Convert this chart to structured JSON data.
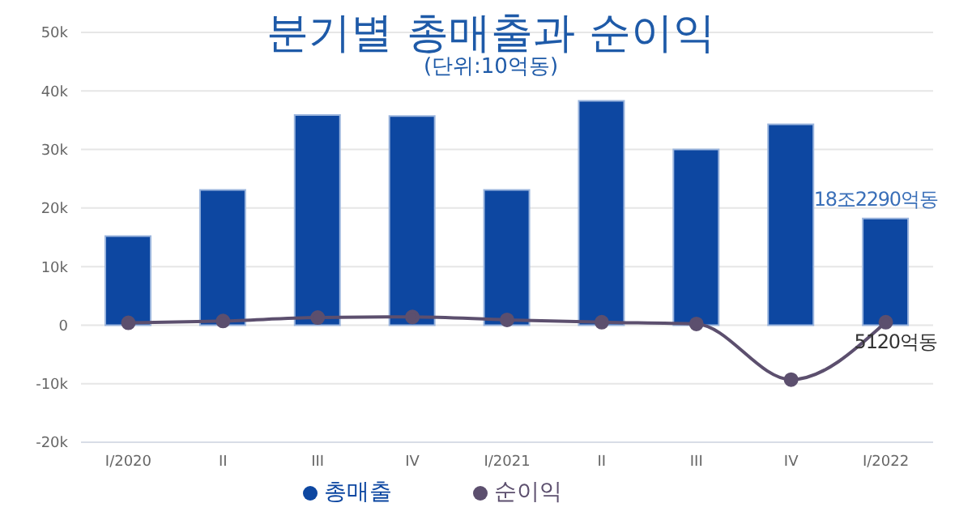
{
  "chart_data": {
    "type": "bar",
    "title": "분기별 총매출과 순이익",
    "subtitle": "(단위:10억동)",
    "categories": [
      "I/2020",
      "II",
      "III",
      "IV",
      "I/2021",
      "II",
      "III",
      "IV",
      "I/2022"
    ],
    "series": [
      {
        "name": "총매출",
        "color": "#0d47a1",
        "values": [
          15.2,
          23.1,
          35.9,
          35.7,
          23.1,
          38.3,
          30.0,
          34.3,
          18.2
        ]
      },
      {
        "name": "순이익",
        "type": "line",
        "color": "#5c4f6e",
        "values": [
          0.4,
          0.7,
          1.3,
          1.4,
          0.9,
          0.5,
          0.2,
          -9.3,
          0.5
        ]
      }
    ],
    "annotations": [
      "18조2290억동",
      "5120억동"
    ],
    "ylim": [
      -20,
      50
    ],
    "yticks": [
      {
        "value": -20,
        "label": "-20k"
      },
      {
        "value": -10,
        "label": "-10k"
      },
      0,
      {
        "value": 10,
        "label": "10k"
      },
      {
        "value": 20,
        "label": "20k"
      },
      {
        "value": 30,
        "label": "30k"
      },
      {
        "value": 40,
        "label": "40k"
      },
      {
        "value": 50,
        "label": "50k"
      }
    ],
    "grid": "y",
    "legend": "bottom",
    "marker": "circle",
    "line_style": "solid"
  }
}
